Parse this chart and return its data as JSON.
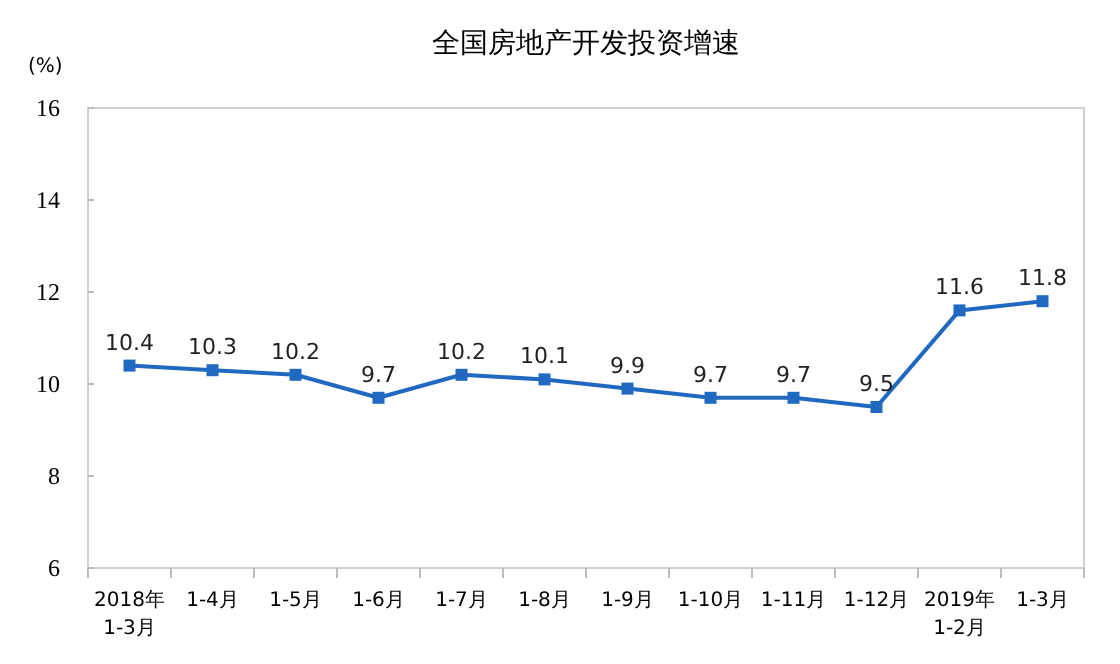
{
  "chart_data": {
    "type": "line",
    "title": "全国房地产开发投资增速",
    "ylabel": "(%)",
    "categories": [
      "2018年\n1-3月",
      "1-4月",
      "1-5月",
      "1-6月",
      "1-7月",
      "1-8月",
      "1-9月",
      "1-10月",
      "1-11月",
      "1-12月",
      "2019年\n1-2月",
      "1-3月"
    ],
    "series": [
      {
        "color": "#2169c0",
        "values": [
          10.4,
          10.3,
          10.2,
          9.7,
          10.2,
          10.1,
          9.9,
          9.7,
          9.7,
          9.5,
          11.6,
          11.8
        ]
      }
    ],
    "ylim": [
      6,
      16
    ],
    "yticks": [
      6,
      8,
      10,
      12,
      14,
      16
    ],
    "grid": false,
    "marker": "square",
    "data_labels": true
  }
}
